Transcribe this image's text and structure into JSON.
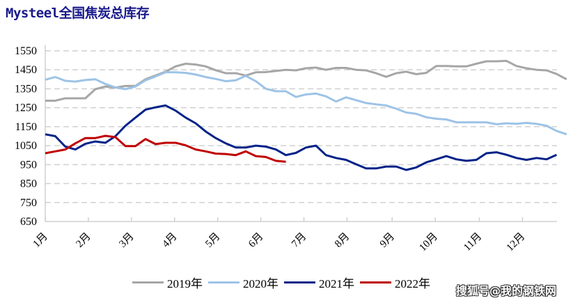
{
  "title": "Mysteel全国焦炭总库存",
  "watermark": "搜狐号@我的钢铁网",
  "chart_data": {
    "type": "line",
    "title": "Mysteel全国焦炭总库存",
    "xlabel": "",
    "ylabel": "",
    "ylim": [
      650,
      1550
    ],
    "yticks": [
      650,
      750,
      850,
      950,
      1050,
      1150,
      1250,
      1350,
      1450,
      1550
    ],
    "x_tick_labels": [
      "1月",
      "2月",
      "3月",
      "4月",
      "5月",
      "6月",
      "7月",
      "8月",
      "9月",
      "10月",
      "11月",
      "12月"
    ],
    "x_tick_week_index": [
      0,
      4.3,
      8.6,
      12.9,
      17.2,
      21.5,
      25.8,
      30.1,
      34.6,
      38.9,
      43.3,
      47.6
    ],
    "grid": "horizontal dashed",
    "legend_position": "bottom",
    "x": "week index (0-based, weekly samples)",
    "series": [
      {
        "name": "2019年",
        "color": "#a6a6a6",
        "values": [
          1287,
          1287,
          1300,
          1300,
          1300,
          1348,
          1362,
          1356,
          1365,
          1365,
          1400,
          1420,
          1440,
          1468,
          1482,
          1478,
          1468,
          1448,
          1432,
          1432,
          1420,
          1437,
          1438,
          1444,
          1450,
          1447,
          1458,
          1462,
          1450,
          1460,
          1460,
          1450,
          1447,
          1432,
          1413,
          1432,
          1440,
          1427,
          1434,
          1470,
          1470,
          1468,
          1468,
          1482,
          1495,
          1495,
          1497,
          1470,
          1458,
          1450,
          1447,
          1428,
          1400
        ]
      },
      {
        "name": "2020年",
        "color": "#9dc3e6",
        "values": [
          1398,
          1412,
          1392,
          1388,
          1396,
          1400,
          1375,
          1357,
          1348,
          1362,
          1395,
          1415,
          1437,
          1437,
          1434,
          1425,
          1412,
          1402,
          1390,
          1395,
          1418,
          1390,
          1350,
          1337,
          1337,
          1307,
          1320,
          1325,
          1310,
          1283,
          1305,
          1290,
          1275,
          1268,
          1262,
          1245,
          1225,
          1218,
          1200,
          1192,
          1188,
          1173,
          1173,
          1173,
          1173,
          1163,
          1168,
          1165,
          1170,
          1165,
          1155,
          1128,
          1110
        ]
      },
      {
        "name": "2021年",
        "color": "#002288",
        "values": [
          1110,
          1100,
          1045,
          1030,
          1060,
          1072,
          1065,
          1100,
          1155,
          1198,
          1240,
          1252,
          1262,
          1235,
          1198,
          1168,
          1125,
          1090,
          1062,
          1040,
          1040,
          1050,
          1045,
          1030,
          1000,
          1012,
          1040,
          1050,
          1000,
          985,
          975,
          952,
          930,
          930,
          940,
          940,
          922,
          935,
          962,
          978,
          995,
          978,
          970,
          975,
          1010,
          1015,
          1002,
          985,
          975,
          985,
          978,
          1002
        ]
      },
      {
        "name": "2022年",
        "color": "#c00000",
        "values": [
          1010,
          1020,
          1030,
          1062,
          1090,
          1090,
          1102,
          1095,
          1048,
          1048,
          1085,
          1058,
          1065,
          1065,
          1052,
          1030,
          1020,
          1008,
          1006,
          1000,
          1020,
          995,
          990,
          970,
          965
        ]
      }
    ]
  },
  "legend": [
    {
      "label": "2019年",
      "color": "#a6a6a6"
    },
    {
      "label": "2020年",
      "color": "#9dc3e6"
    },
    {
      "label": "2021年",
      "color": "#002288"
    },
    {
      "label": "2022年",
      "color": "#c00000"
    }
  ]
}
